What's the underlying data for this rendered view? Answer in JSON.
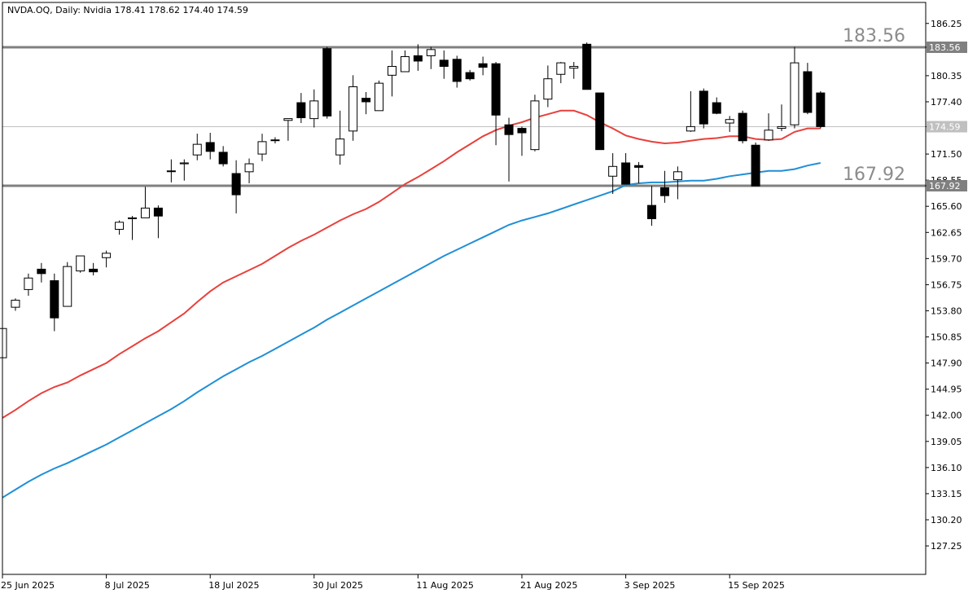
{
  "chart_data": {
    "type": "candlestick",
    "symbol_header": "NVDA.OQ, Daily:  Nvidia  178.41 178.62 174.40 174.59",
    "y_ticks": [
      "186.25",
      "183.56",
      "180.35",
      "177.40",
      "174.59",
      "171.50",
      "168.55",
      "167.92",
      "165.60",
      "162.65",
      "159.70",
      "156.75",
      "153.80",
      "150.85",
      "147.90",
      "144.95",
      "142.00",
      "139.05",
      "136.10",
      "133.15",
      "130.20",
      "127.25"
    ],
    "x_ticks": [
      {
        "label": "25 Jun 2025",
        "idx": 0
      },
      {
        "label": "8 Jul 2025",
        "idx": 8
      },
      {
        "label": "18 Jul 2025",
        "idx": 16
      },
      {
        "label": "30 Jul 2025",
        "idx": 24
      },
      {
        "label": "11 Aug 2025",
        "idx": 32
      },
      {
        "label": "21 Aug 2025",
        "idx": 40
      },
      {
        "label": "3 Sep 2025",
        "idx": 48
      },
      {
        "label": "15 Sep 2025",
        "idx": 56
      }
    ],
    "levels": [
      {
        "value": 183.56,
        "label": "183.56",
        "tag": "183.56"
      },
      {
        "value": 167.92,
        "label": "167.92",
        "tag": "167.92"
      }
    ],
    "last_price": {
      "value": 174.59,
      "tag": "174.59"
    },
    "ohlc": [
      [
        148.5,
        153.6,
        148.4,
        151.8
      ],
      [
        154.2,
        155.2,
        153.8,
        155.0
      ],
      [
        156.2,
        158.0,
        155.5,
        157.5
      ],
      [
        158.5,
        159.2,
        157.0,
        158.0
      ],
      [
        157.2,
        158.0,
        151.5,
        153.0
      ],
      [
        154.3,
        159.3,
        154.3,
        158.8
      ],
      [
        158.3,
        160.0,
        158.1,
        160.0
      ],
      [
        158.5,
        159.2,
        157.8,
        158.2
      ],
      [
        159.8,
        160.6,
        158.7,
        160.3
      ],
      [
        163.0,
        164.0,
        162.4,
        163.8
      ],
      [
        164.2,
        164.5,
        161.8,
        164.3
      ],
      [
        164.3,
        167.8,
        164.3,
        165.4
      ],
      [
        165.4,
        165.7,
        162.0,
        164.5
      ],
      [
        169.6,
        170.9,
        168.3,
        169.6
      ],
      [
        170.4,
        170.9,
        168.5,
        170.5
      ],
      [
        171.4,
        173.8,
        170.8,
        172.6
      ],
      [
        172.8,
        173.9,
        170.9,
        171.8
      ],
      [
        171.7,
        172.4,
        170.1,
        170.4
      ],
      [
        169.3,
        170.8,
        164.8,
        166.9
      ],
      [
        169.5,
        171.0,
        168.2,
        170.4
      ],
      [
        171.5,
        173.8,
        170.7,
        172.9
      ],
      [
        173.1,
        173.4,
        172.7,
        173.1
      ],
      [
        175.3,
        175.4,
        173.0,
        175.5
      ],
      [
        177.3,
        178.4,
        175.0,
        175.6
      ],
      [
        175.5,
        178.8,
        174.5,
        177.5
      ],
      [
        183.4,
        183.6,
        175.5,
        175.8
      ],
      [
        171.4,
        176.4,
        170.3,
        173.2
      ],
      [
        174.1,
        180.4,
        173.0,
        179.1
      ],
      [
        177.8,
        178.5,
        176.0,
        177.4
      ],
      [
        176.4,
        179.8,
        176.4,
        179.5
      ],
      [
        180.4,
        183.2,
        178.0,
        181.4
      ],
      [
        180.8,
        183.2,
        181.0,
        182.5
      ],
      [
        182.6,
        183.9,
        180.9,
        182.0
      ],
      [
        182.6,
        183.6,
        181.1,
        183.3
      ],
      [
        182.1,
        183.2,
        180.0,
        181.4
      ],
      [
        182.2,
        182.6,
        179.0,
        179.7
      ],
      [
        180.7,
        181.0,
        179.8,
        180.0
      ],
      [
        181.7,
        182.5,
        180.4,
        181.3
      ],
      [
        181.7,
        181.9,
        172.5,
        175.9
      ],
      [
        174.8,
        175.6,
        168.4,
        173.7
      ],
      [
        174.4,
        174.6,
        171.3,
        173.9
      ],
      [
        172.0,
        178.2,
        171.8,
        177.5
      ],
      [
        177.7,
        181.5,
        176.8,
        180.0
      ],
      [
        180.5,
        181.9,
        179.5,
        181.8
      ],
      [
        181.2,
        181.9,
        180.0,
        181.4
      ],
      [
        183.9,
        184.1,
        178.9,
        178.8
      ],
      [
        178.4,
        178.4,
        172.0,
        172.0
      ],
      [
        169.0,
        171.6,
        167.0,
        170.1
      ],
      [
        170.5,
        171.6,
        168.2,
        168.1
      ],
      [
        170.2,
        170.6,
        168.2,
        170.0
      ],
      [
        165.7,
        167.9,
        163.4,
        164.2
      ],
      [
        167.7,
        169.6,
        166.0,
        166.8
      ],
      [
        168.6,
        170.1,
        166.4,
        169.5
      ],
      [
        174.1,
        178.6,
        174.0,
        174.6
      ],
      [
        178.6,
        178.9,
        174.4,
        174.9
      ],
      [
        177.3,
        177.9,
        176.0,
        176.1
      ],
      [
        175.0,
        175.8,
        174.0,
        175.4
      ],
      [
        176.1,
        176.4,
        172.7,
        173.0
      ],
      [
        172.5,
        172.8,
        167.9,
        167.9
      ],
      [
        173.1,
        176.1,
        173.0,
        174.2
      ],
      [
        174.4,
        177.1,
        174.1,
        174.6
      ],
      [
        174.8,
        183.6,
        174.4,
        181.8
      ],
      [
        180.8,
        181.8,
        176.0,
        176.2
      ],
      [
        178.4,
        178.6,
        174.4,
        174.6
      ]
    ],
    "ma_fast": [
      141.7,
      142.6,
      143.6,
      144.5,
      145.2,
      145.7,
      146.5,
      147.2,
      147.9,
      148.9,
      149.8,
      150.7,
      151.5,
      152.5,
      153.5,
      154.8,
      156.0,
      157.0,
      157.7,
      158.4,
      159.1,
      160.0,
      160.9,
      161.7,
      162.4,
      163.2,
      164.0,
      164.7,
      165.3,
      166.1,
      167.1,
      168.1,
      168.9,
      169.8,
      170.7,
      171.7,
      172.6,
      173.5,
      174.2,
      174.7,
      175.1,
      175.6,
      176.0,
      176.4,
      176.4,
      175.9,
      175.1,
      174.4,
      173.6,
      173.2,
      172.9,
      172.7,
      172.8,
      173.0,
      173.2,
      173.3,
      173.5,
      173.5,
      173.2,
      173.1,
      173.2,
      174.0,
      174.4,
      174.4
    ],
    "ma_slow": [
      132.7,
      133.6,
      134.5,
      135.3,
      136.0,
      136.6,
      137.3,
      138.0,
      138.7,
      139.5,
      140.3,
      141.1,
      141.9,
      142.7,
      143.6,
      144.6,
      145.5,
      146.4,
      147.2,
      148.0,
      148.7,
      149.5,
      150.3,
      151.1,
      151.9,
      152.8,
      153.6,
      154.4,
      155.2,
      156.0,
      156.8,
      157.6,
      158.4,
      159.2,
      160.0,
      160.7,
      161.4,
      162.1,
      162.8,
      163.5,
      164.0,
      164.4,
      164.8,
      165.3,
      165.8,
      166.3,
      166.8,
      167.3,
      168.0,
      168.2,
      168.3,
      168.3,
      168.4,
      168.5,
      168.5,
      168.7,
      169.0,
      169.2,
      169.4,
      169.6,
      169.6,
      169.8,
      170.2,
      170.5
    ],
    "colors": {
      "background": "#ffffff",
      "grid": "#000000",
      "candle_outline": "#000000",
      "bull_body": "#ffffff",
      "bear_body": "#000000",
      "ma_fast": "#e8413c",
      "ma_slow": "#1f8fd6",
      "level_line": "#808080",
      "level_text": "#8c8c8c",
      "last_line": "#c0c0c0",
      "last_tag": "#c0c0c0"
    }
  }
}
